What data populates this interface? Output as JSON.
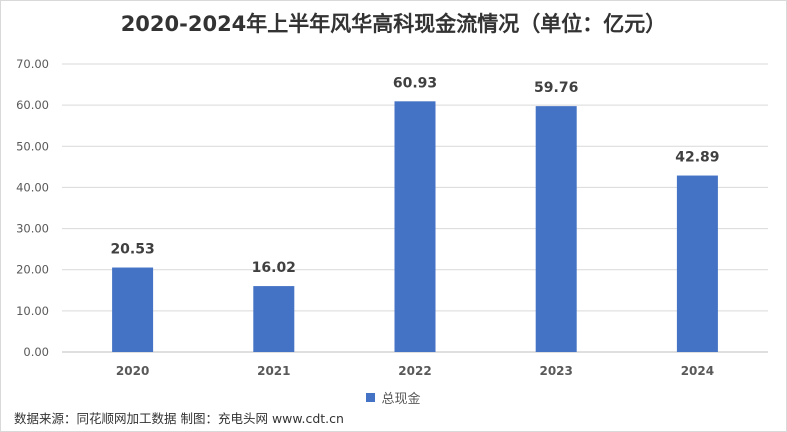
{
  "chart_data": {
    "type": "bar",
    "title": "2020-2024年上半年风华高科现金流情况（单位：亿元）",
    "categories": [
      "2020",
      "2021",
      "2022",
      "2023",
      "2024"
    ],
    "series": [
      {
        "name": "总现金",
        "values": [
          20.53,
          16.02,
          60.93,
          59.76,
          42.89
        ],
        "color": "#4472c4"
      }
    ],
    "data_labels": [
      "20.53",
      "16.02",
      "60.93",
      "59.76",
      "42.89"
    ],
    "ylim": [
      0,
      70
    ],
    "yticks": [
      "0.00",
      "10.00",
      "20.00",
      "30.00",
      "40.00",
      "50.00",
      "60.00",
      "70.00"
    ],
    "grid": true,
    "legend_position": "bottom",
    "xlabel": "",
    "ylabel": ""
  },
  "footer": {
    "source": "数据来源：同花顺网加工数据 制图：充电头网 www.cdt.cn"
  }
}
